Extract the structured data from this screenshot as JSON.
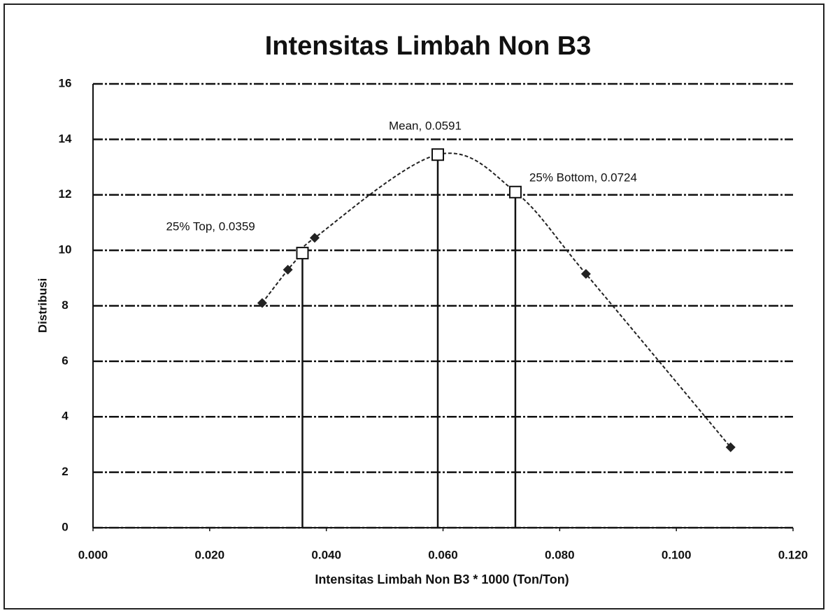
{
  "chart_data": {
    "type": "scatter",
    "title": "Intensitas Limbah Non B3",
    "x_label": "Intensitas Limbah Non B3 * 1000 (Ton/Ton)",
    "y_label": "Distribusi",
    "series": [
      {
        "color": "#222222",
        "x": [
          0.029,
          0.0334,
          0.0359,
          0.038,
          0.0591,
          0.0724,
          0.0845,
          0.1093
        ],
        "values": [
          8.1,
          9.3,
          9.9,
          10.45,
          13.45,
          12.1,
          9.15,
          2.9
        ]
      }
    ],
    "annotations": [
      {
        "text": "25% Top, 0.0359",
        "x": 0.0359,
        "y": 9.9
      },
      {
        "text": "Mean, 0.0591",
        "x": 0.0591,
        "y": 13.45
      },
      {
        "text": "25% Bottom, 0.0724",
        "x": 0.0724,
        "y": 12.1
      }
    ],
    "xlim": [
      0,
      0.12
    ],
    "xticks": [
      {
        "value": 0,
        "label": "0.000"
      },
      {
        "value": 0.02,
        "label": "0.020"
      },
      {
        "value": 0.04,
        "label": "0.040"
      },
      {
        "value": 0.06,
        "label": "0.060"
      },
      {
        "value": 0.08,
        "label": "0.080"
      },
      {
        "value": 0.1,
        "label": "0.100"
      },
      {
        "value": 0.12,
        "label": "0.120"
      }
    ],
    "ylim": [
      0,
      16
    ],
    "yticks": [
      0,
      2,
      4,
      6,
      8,
      10,
      12,
      14,
      16
    ],
    "grid": true
  }
}
